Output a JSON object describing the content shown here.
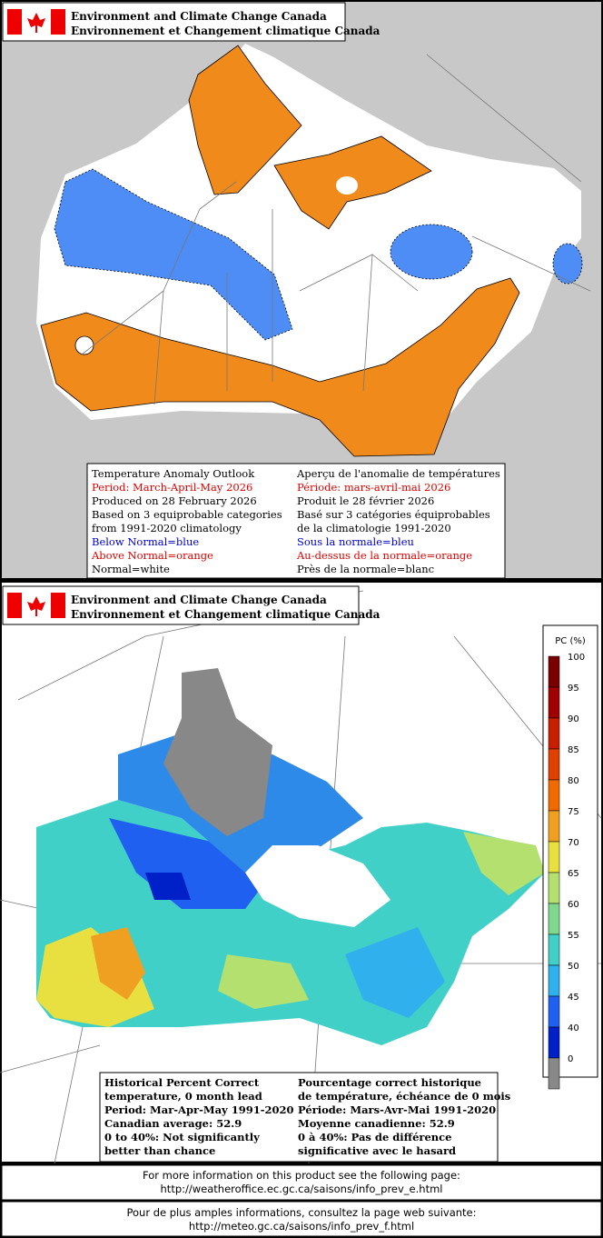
{
  "top_panel": {
    "header": [
      "Environment and Climate Change Canada",
      "Environnement et Changement climatique Canada"
    ],
    "legend_en": [
      {
        "text": "Temperature Anomaly Outlook",
        "color": "#000000"
      },
      {
        "text": "Period: March-April-May 2026",
        "color": "#e00000"
      },
      {
        "text": "Produced on 28 February 2026",
        "color": "#000000"
      },
      {
        "text": "Based on 3 equiprobable categories",
        "color": "#000000"
      },
      {
        "text": "from 1991-2020 climatology",
        "color": "#000000"
      },
      {
        "text": "Below Normal=blue",
        "color": "#0000d0"
      },
      {
        "text": "Above Normal=orange",
        "color": "#e00000"
      },
      {
        "text": "Normal=white",
        "color": "#000000"
      }
    ],
    "legend_fr": [
      {
        "text": "Aperçu de l'anomalie de températures",
        "color": "#000000"
      },
      {
        "text": "Période: mars-avril-mai 2026",
        "color": "#e00000"
      },
      {
        "text": "Produit le 28 février 2026",
        "color": "#000000"
      },
      {
        "text": "Basé sur 3 catégories équiprobables",
        "color": "#000000"
      },
      {
        "text": "de la climatologie 1991-2020",
        "color": "#000000"
      },
      {
        "text": "Sous la normale=bleu",
        "color": "#0000d0"
      },
      {
        "text": "Au-dessus de la normale=orange",
        "color": "#e00000"
      },
      {
        "text": "Près de la normale=blanc",
        "color": "#000000"
      }
    ]
  },
  "bottom_panel": {
    "header": [
      "Environment and Climate Change Canada",
      "Environnement et Changement climatique Canada"
    ],
    "scale_title": "PC (%)",
    "scale_ticks": [
      100,
      95,
      90,
      85,
      80,
      75,
      70,
      65,
      60,
      55,
      50,
      45,
      40,
      0
    ],
    "scale_colors": [
      "#7a0000",
      "#a00000",
      "#c81e00",
      "#e04000",
      "#f06a00",
      "#f0a020",
      "#e8e040",
      "#b4e070",
      "#80d890",
      "#40d0c8",
      "#30b0ec",
      "#2060f0",
      "#0020c8",
      "#888888"
    ],
    "legend_en": [
      "Historical Percent Correct",
      "temperature, 0 month lead",
      "Period: Mar-Apr-May 1991-2020",
      "Canadian average: 52.9",
      "0 to 40%: Not significantly",
      "better than chance"
    ],
    "legend_fr": [
      "Pourcentage correct historique",
      "de température, échéance de 0 mois",
      "Période: Mars-Avr-Mai 1991-2020",
      "Moyenne canadienne: 52.9",
      "0 à 40%: Pas de différence",
      "significative avec le hasard"
    ]
  },
  "footer_en": [
    "For more information on this product see the following page:",
    "http://weatheroffice.ec.gc.ca/saisons/info_prev_e.html"
  ],
  "footer_fr": [
    "Pour de plus amples informations, consultez la page web suivante:",
    "http://meteo.gc.ca/saisons/info_prev_f.html"
  ]
}
